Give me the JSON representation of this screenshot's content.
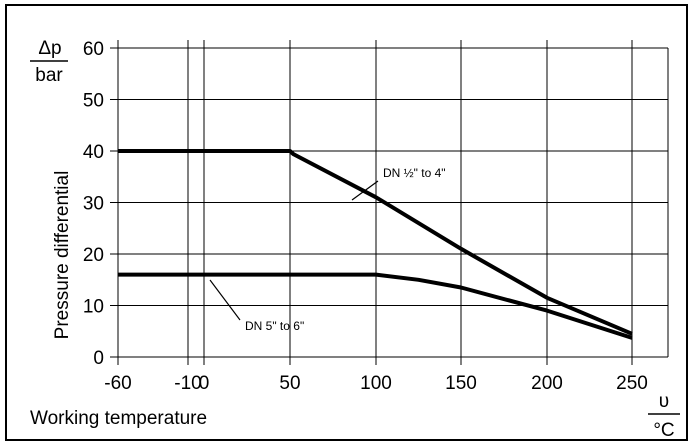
{
  "chart_data": {
    "type": "line",
    "ylabel": "Pressure differential",
    "ylabel_unit_top": "Δp",
    "ylabel_unit_bottom": "bar",
    "xlabel": "Working temperature",
    "xlabel_unit_top": "υ",
    "xlabel_unit_bottom": "°C",
    "x_ticks": [
      "-60",
      "-10",
      "0",
      "50",
      "100",
      "150",
      "200",
      "250"
    ],
    "x_tick_values": [
      -60,
      -10,
      0,
      50,
      100,
      150,
      200,
      250
    ],
    "y_ticks": [
      "0",
      "10",
      "20",
      "30",
      "40",
      "50",
      "60"
    ],
    "y_tick_values": [
      0,
      10,
      20,
      30,
      40,
      50,
      60
    ],
    "xlim": [
      -60,
      270
    ],
    "ylim": [
      0,
      62
    ],
    "grid": true,
    "series": [
      {
        "name": "DN ½\" to 4\"",
        "points": [
          [
            -60,
            40
          ],
          [
            50,
            40
          ],
          [
            52,
            39.4
          ],
          [
            100,
            31
          ],
          [
            150,
            21
          ],
          [
            200,
            11.5
          ],
          [
            250,
            4.5
          ]
        ]
      },
      {
        "name": "DN 5\" to 6\"",
        "points": [
          [
            -60,
            16
          ],
          [
            100,
            16
          ],
          [
            125,
            15
          ],
          [
            150,
            13.5
          ],
          [
            200,
            9
          ],
          [
            250,
            3.7
          ]
        ]
      }
    ],
    "annotations": [
      {
        "text": "DN ½\" to 4\"",
        "series": 0
      },
      {
        "text": "DN 5\" to 6\"",
        "series": 1
      }
    ]
  }
}
